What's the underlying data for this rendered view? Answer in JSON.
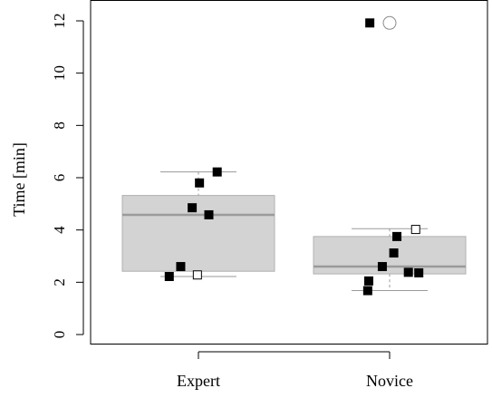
{
  "chart_data": {
    "type": "boxplot",
    "title": "",
    "xlabel": "",
    "ylabel": "Time [min]",
    "ylim": [
      0,
      12.5
    ],
    "yticks": [
      0,
      2,
      4,
      6,
      8,
      10,
      12
    ],
    "grid": false,
    "legend": "none",
    "categories": [
      "Expert",
      "Novice"
    ],
    "colors": {
      "box_fill": "#d3d3d3",
      "box_edge": "#b0b0b0",
      "median": "#9a9a9a",
      "whisker": "#9a9a9a",
      "point": "#000000",
      "outlier": "#8a8a8a"
    },
    "boxes": [
      {
        "category": "Expert",
        "whisker_low": 2.22,
        "q1": 2.42,
        "median": 4.58,
        "q3": 5.32,
        "whisker_high": 6.22,
        "outliers": []
      },
      {
        "category": "Novice",
        "whisker_low": 1.68,
        "q1": 2.32,
        "median": 2.6,
        "q3": 3.75,
        "whisker_high": 4.05,
        "outliers": [
          11.92
        ]
      }
    ],
    "points": [
      {
        "category": "Expert",
        "jitter": -0.28,
        "value": 2.22,
        "style": "filled"
      },
      {
        "category": "Expert",
        "jitter": -0.17,
        "value": 2.6,
        "style": "filled"
      },
      {
        "category": "Expert",
        "jitter": -0.01,
        "value": 2.28,
        "style": "hollow"
      },
      {
        "category": "Expert",
        "jitter": -0.06,
        "value": 4.85,
        "style": "filled"
      },
      {
        "category": "Expert",
        "jitter": 0.01,
        "value": 5.8,
        "style": "filled"
      },
      {
        "category": "Expert",
        "jitter": 0.1,
        "value": 4.58,
        "style": "filled"
      },
      {
        "category": "Expert",
        "jitter": 0.18,
        "value": 6.22,
        "style": "filled"
      },
      {
        "category": "Novice",
        "jitter": -0.21,
        "value": 1.68,
        "style": "filled"
      },
      {
        "category": "Novice",
        "jitter": -0.2,
        "value": 2.05,
        "style": "filled"
      },
      {
        "category": "Novice",
        "jitter": -0.07,
        "value": 2.6,
        "style": "filled"
      },
      {
        "category": "Novice",
        "jitter": 0.04,
        "value": 3.12,
        "style": "filled"
      },
      {
        "category": "Novice",
        "jitter": 0.07,
        "value": 3.75,
        "style": "filled"
      },
      {
        "category": "Novice",
        "jitter": 0.18,
        "value": 2.38,
        "style": "filled"
      },
      {
        "category": "Novice",
        "jitter": 0.28,
        "value": 2.36,
        "style": "filled"
      },
      {
        "category": "Novice",
        "jitter": 0.25,
        "value": 4.02,
        "style": "hollow"
      },
      {
        "category": "Novice",
        "jitter": -0.19,
        "value": 11.92,
        "style": "filled"
      }
    ]
  }
}
